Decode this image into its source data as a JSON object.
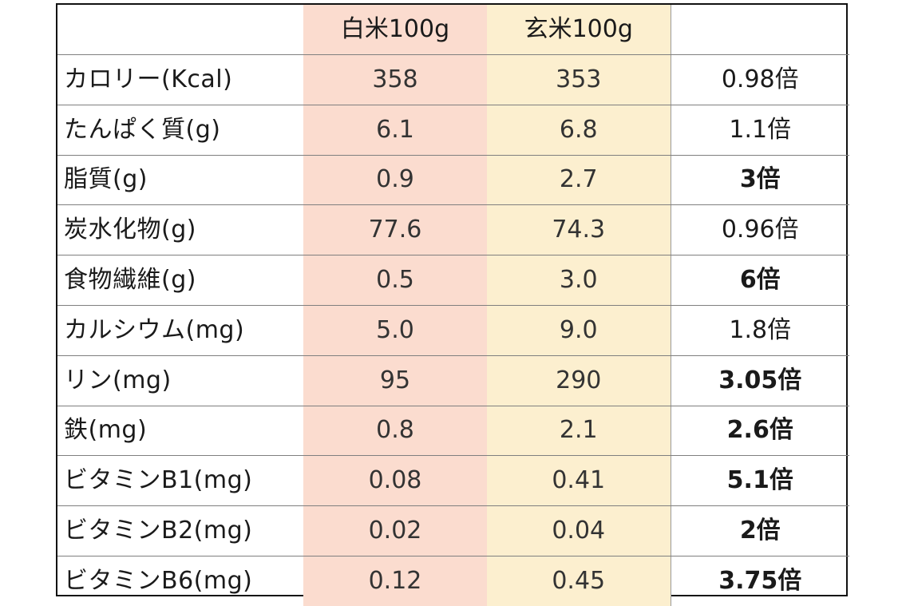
{
  "table": {
    "headers": {
      "label": "",
      "white_rice": "白米100g",
      "brown_rice": "玄米100g",
      "ratio": ""
    },
    "rows": [
      {
        "label": "カロリー(Kcal)",
        "white": "358",
        "brown": "353",
        "ratio": "0.98倍",
        "ratio_bold": false
      },
      {
        "label": "たんぱく質(g)",
        "white": "6.1",
        "brown": "6.8",
        "ratio": "1.1倍",
        "ratio_bold": false
      },
      {
        "label": "脂質(g)",
        "white": "0.9",
        "brown": "2.7",
        "ratio": "3倍",
        "ratio_bold": true
      },
      {
        "label": "炭水化物(g)",
        "white": "77.6",
        "brown": "74.3",
        "ratio": "0.96倍",
        "ratio_bold": false
      },
      {
        "label": "食物繊維(g)",
        "white": "0.5",
        "brown": "3.0",
        "ratio": "6倍",
        "ratio_bold": true
      },
      {
        "label": "カルシウム(mg)",
        "white": "5.0",
        "brown": "9.0",
        "ratio": "1.8倍",
        "ratio_bold": false
      },
      {
        "label": "リン(mg)",
        "white": "95",
        "brown": "290",
        "ratio": "3.05倍",
        "ratio_bold": true
      },
      {
        "label": "鉄(mg)",
        "white": "0.8",
        "brown": "2.1",
        "ratio": "2.6倍",
        "ratio_bold": true
      },
      {
        "label": "ビタミンB1(mg)",
        "white": "0.08",
        "brown": "0.41",
        "ratio": "5.1倍",
        "ratio_bold": true
      },
      {
        "label": "ビタミンB2(mg)",
        "white": "0.02",
        "brown": "0.04",
        "ratio": "2倍",
        "ratio_bold": true
      },
      {
        "label": "ビタミンB6(mg)",
        "white": "0.12",
        "brown": "0.45",
        "ratio": "3.75倍",
        "ratio_bold": true
      }
    ]
  },
  "colors": {
    "white_rice_column": "#fbdccf",
    "brown_rice_column": "#fcefcf",
    "border": "#111111",
    "row_divider": "#7f7f7f"
  }
}
